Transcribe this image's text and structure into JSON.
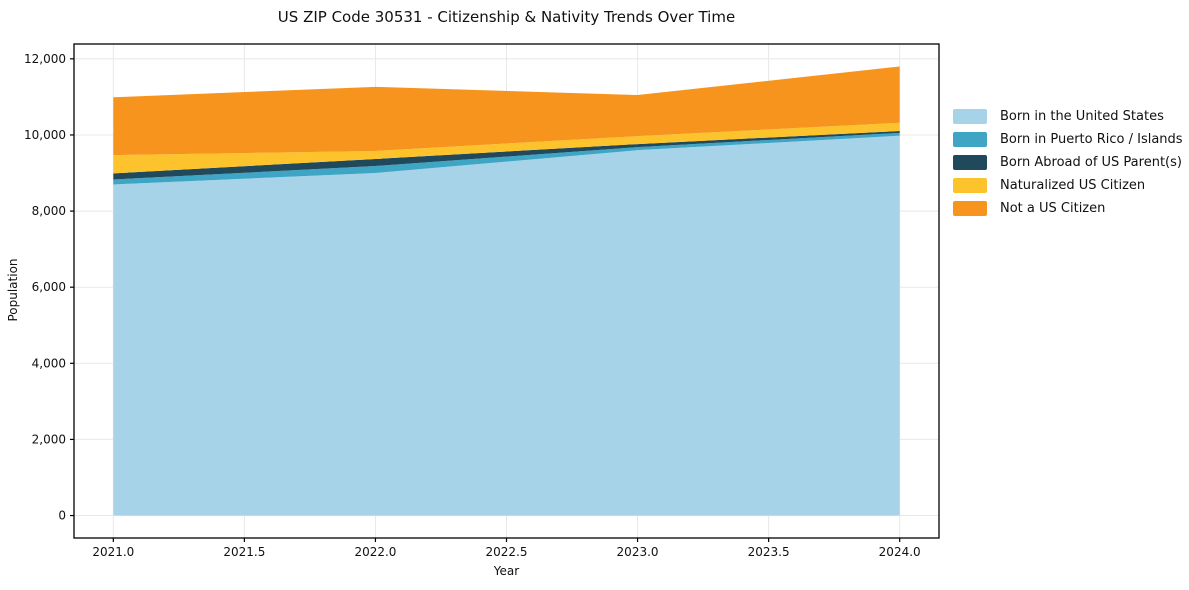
{
  "chart_data": {
    "type": "area",
    "stacked": true,
    "title": "US ZIP Code 30531 - Citizenship & Nativity Trends Over Time",
    "xlabel": "Year",
    "ylabel": "Population",
    "x": [
      2021,
      2022,
      2023,
      2024
    ],
    "series": [
      {
        "name": "Born in the United States",
        "color": "#a6d3e8",
        "values": [
          8700,
          9000,
          9600,
          9980
        ]
      },
      {
        "name": "Born in Puerto Rico / Islands",
        "color": "#3ea5c4",
        "values": [
          130,
          185,
          80,
          75
        ]
      },
      {
        "name": "Born Abroad of US Parent(s)",
        "color": "#21495c",
        "values": [
          160,
          185,
          80,
          50
        ]
      },
      {
        "name": "Naturalized US Citizen",
        "color": "#fcc32d",
        "values": [
          480,
          210,
          210,
          215
        ]
      },
      {
        "name": "Not a US Citizen",
        "color": "#f7941e",
        "values": [
          1520,
          1685,
          1080,
          1480
        ]
      }
    ],
    "stacked_totals": [
      10990,
      11265,
      11050,
      11800
    ],
    "xlim": [
      2020.85,
      2024.15
    ],
    "ylim": [
      -590,
      12390
    ],
    "xticks": [
      2021.0,
      2021.5,
      2022.0,
      2022.5,
      2023.0,
      2023.5,
      2024.0
    ],
    "xtick_labels": [
      "2021.0",
      "2021.5",
      "2022.0",
      "2022.5",
      "2023.0",
      "2023.5",
      "2024.0"
    ],
    "yticks": [
      0,
      2000,
      4000,
      6000,
      8000,
      10000,
      12000
    ],
    "ytick_labels": [
      "0",
      "2,000",
      "4,000",
      "6,000",
      "8,000",
      "10,000",
      "12,000"
    ],
    "grid": true,
    "grid_color": "#e8e8e8",
    "axis_color": "#000000",
    "legend_position": "right-outside",
    "background_color": "#ffffff"
  }
}
